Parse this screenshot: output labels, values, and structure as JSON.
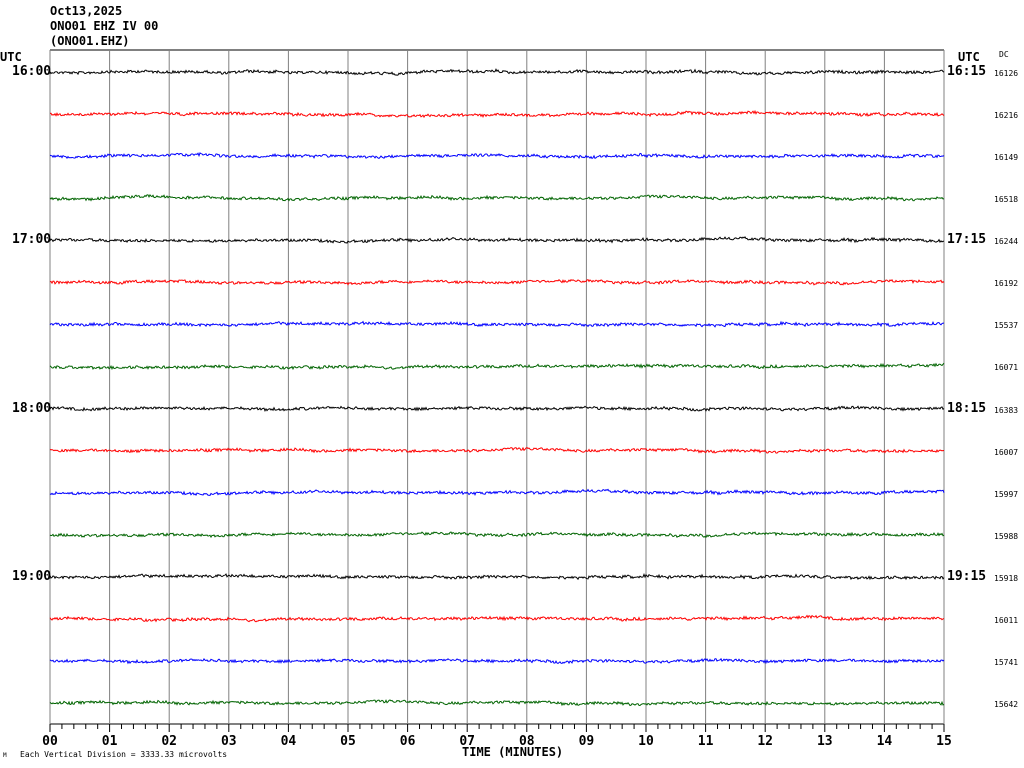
{
  "header": {
    "date": "Oct13,2025",
    "station": "ONO01 EHZ IV 00",
    "channel": "(ONO01.EHZ)"
  },
  "left_axis_label": "UTC",
  "right_axis_label": "UTC",
  "dc_label": "DC",
  "footer": {
    "corner_mark": "M",
    "scale_note": "Each Vertical Division = 3333.33 microvolts"
  },
  "colors": {
    "black": "#000000",
    "red": "#ff0000",
    "blue": "#0000ff",
    "green": "#006400",
    "grid": "#808080"
  },
  "chart_data": {
    "type": "line",
    "title": "Oct13,2025 ONO01 EHZ IV 00 (ONO01.EHZ)",
    "xlabel": "TIME (MINUTES)",
    "xlim": [
      0,
      15
    ],
    "x_ticks": [
      "00",
      "01",
      "02",
      "03",
      "04",
      "05",
      "06",
      "07",
      "08",
      "09",
      "10",
      "11",
      "12",
      "13",
      "14",
      "15"
    ],
    "grid": true,
    "rows": [
      {
        "left": "16:00",
        "right": "16:15",
        "dc": "16126",
        "color": "#000000"
      },
      {
        "left": "",
        "right": "",
        "dc": "16216",
        "color": "#ff0000"
      },
      {
        "left": "",
        "right": "",
        "dc": "16149",
        "color": "#0000ff"
      },
      {
        "left": "",
        "right": "",
        "dc": "16518",
        "color": "#006400"
      },
      {
        "left": "17:00",
        "right": "17:15",
        "dc": "16244",
        "color": "#000000"
      },
      {
        "left": "",
        "right": "",
        "dc": "16192",
        "color": "#ff0000"
      },
      {
        "left": "",
        "right": "",
        "dc": "15537",
        "color": "#0000ff"
      },
      {
        "left": "",
        "right": "",
        "dc": "16071",
        "color": "#006400"
      },
      {
        "left": "18:00",
        "right": "18:15",
        "dc": "16383",
        "color": "#000000"
      },
      {
        "left": "",
        "right": "",
        "dc": "16007",
        "color": "#ff0000"
      },
      {
        "left": "",
        "right": "",
        "dc": "15997",
        "color": "#0000ff"
      },
      {
        "left": "",
        "right": "",
        "dc": "15988",
        "color": "#006400"
      },
      {
        "left": "19:00",
        "right": "19:15",
        "dc": "15918",
        "color": "#000000"
      },
      {
        "left": "",
        "right": "",
        "dc": "16011",
        "color": "#ff0000"
      },
      {
        "left": "",
        "right": "",
        "dc": "15741",
        "color": "#0000ff"
      },
      {
        "left": "",
        "right": "",
        "dc": "15642",
        "color": "#006400"
      }
    ]
  }
}
